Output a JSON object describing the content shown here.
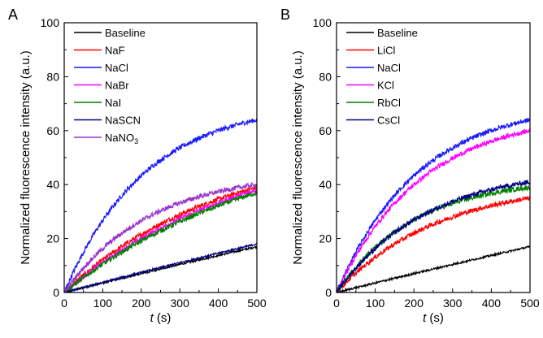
{
  "chart_data": [
    {
      "panel": "A",
      "type": "line",
      "xlabel_italic": "t",
      "xlabel_unit": " (s)",
      "ylabel": "Normalized fluorescence intensity (a.u.)",
      "xlim": [
        0,
        500
      ],
      "ylim": [
        0,
        100
      ],
      "xticks": [
        0,
        100,
        200,
        300,
        400,
        500
      ],
      "yticks": [
        0,
        20,
        40,
        60,
        80,
        100
      ],
      "grid": false,
      "legend_position": "top-left",
      "series": [
        {
          "name": "Baseline",
          "color": "#000000",
          "final": 17,
          "tau": 5000
        },
        {
          "name": "NaF",
          "color": "#ff0000",
          "final": 39,
          "tau": 400
        },
        {
          "name": "NaCl",
          "color": "#1a1aff",
          "final": 64,
          "tau": 210
        },
        {
          "name": "NaBr",
          "color": "#ff00ff",
          "final": 38,
          "tau": 480
        },
        {
          "name": "NaI",
          "color": "#008000",
          "final": 37,
          "tau": 520
        },
        {
          "name": "NaSCN",
          "color": "#000080",
          "final": 18,
          "tau": 5000
        },
        {
          "name": "NaNO",
          "subscript": "3",
          "color": "#9933cc",
          "final": 40,
          "tau": 220
        }
      ]
    },
    {
      "panel": "B",
      "type": "line",
      "xlabel_italic": "t",
      "xlabel_unit": " (s)",
      "ylabel": "Normalized fluorescence intensity (a.u.)",
      "xlim": [
        0,
        500
      ],
      "ylim": [
        0,
        100
      ],
      "xticks": [
        0,
        100,
        200,
        300,
        400,
        500
      ],
      "yticks": [
        0,
        20,
        40,
        60,
        80,
        100
      ],
      "grid": false,
      "legend_position": "top-left",
      "series": [
        {
          "name": "Baseline",
          "color": "#000000",
          "final": 17,
          "tau": 5000
        },
        {
          "name": "LiCl",
          "color": "#ff0000",
          "final": 35,
          "tau": 260
        },
        {
          "name": "NaCl",
          "color": "#1a1aff",
          "final": 64,
          "tau": 210
        },
        {
          "name": "KCl",
          "color": "#ff00ff",
          "final": 60,
          "tau": 220
        },
        {
          "name": "RbCl",
          "color": "#008000",
          "final": 39,
          "tau": 200
        },
        {
          "name": "CsCl",
          "color": "#000080",
          "final": 41,
          "tau": 230
        }
      ]
    }
  ]
}
